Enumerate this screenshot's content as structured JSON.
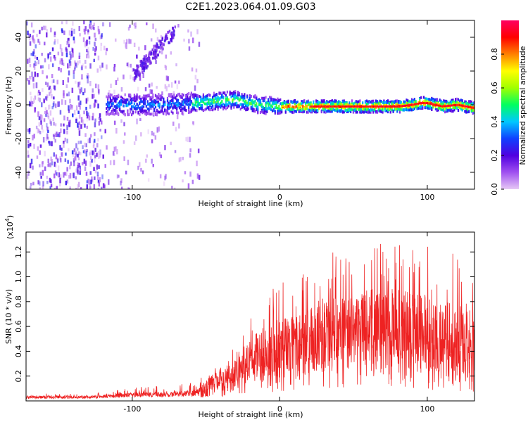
{
  "chart_data": [
    {
      "type": "heatmap",
      "title": "C2E1.2023.064.01.09.G03",
      "xlabel": "Height of straight line (km)",
      "ylabel": "Frequency (Hz)",
      "xlim": [
        -172,
        132
      ],
      "ylim": [
        -50,
        50
      ],
      "xticks": [
        -100,
        0,
        100
      ],
      "yticks": [
        -40,
        -20,
        0,
        20,
        40
      ],
      "colorbar": {
        "label": "Normalized spectral amplitude",
        "range": [
          0.0,
          1.0
        ],
        "ticks": [
          "0.0",
          "0.2",
          "0.4",
          "0.6",
          "0.8"
        ],
        "colors": [
          "#e6c8f5",
          "#a050f0",
          "#5000e0",
          "#1040ff",
          "#00c8ff",
          "#00ff60",
          "#a0ff00",
          "#ffff00",
          "#ff8000",
          "#ff0000",
          "#ff0060"
        ]
      },
      "ridge": {
        "description_values": "peak frequency (Hz) vs height (km)",
        "x": [
          -118,
          -100,
          -80,
          -60,
          -45,
          -30,
          -15,
          0,
          20,
          40,
          60,
          80,
          90,
          95,
          100,
          110,
          120,
          132
        ],
        "freq": [
          0,
          0,
          0,
          1,
          2,
          3,
          0,
          -1,
          -1,
          -1,
          -1,
          -1,
          0,
          1,
          1,
          -1,
          0,
          -2
        ]
      },
      "noise_region": {
        "x_from": -172,
        "x_to": -55,
        "upper_feature_x": [
          -100,
          -70
        ],
        "upper_feature_freq": [
          20,
          45
        ]
      }
    },
    {
      "type": "line",
      "xlabel": "Height of straight line (km)",
      "ylabel": "SNR (10 * v/v)",
      "multiplier_label": "(x10",
      "multiplier_exp": "4",
      "multiplier_close": ")",
      "xlim": [
        -172,
        132
      ],
      "ylim": [
        0,
        1.36
      ],
      "xticks": [
        -100,
        0,
        100
      ],
      "yticks": [
        0.2,
        0.4,
        0.6,
        0.8,
        1.0,
        1.2
      ],
      "ytick_labels": [
        "0.2",
        "0.4",
        "0.6",
        "0.8",
        "1.0",
        "1.2"
      ],
      "color": "#ee2222",
      "envelope": {
        "x": [
          -172,
          -130,
          -115,
          -100,
          -80,
          -60,
          -50,
          -40,
          -30,
          -20,
          -10,
          0,
          10,
          20,
          30,
          40,
          50,
          60,
          70,
          80,
          90,
          100,
          110,
          120,
          132
        ],
        "base": [
          0.03,
          0.03,
          0.04,
          0.05,
          0.05,
          0.06,
          0.1,
          0.15,
          0.22,
          0.28,
          0.32,
          0.36,
          0.38,
          0.4,
          0.44,
          0.48,
          0.5,
          0.52,
          0.52,
          0.5,
          0.48,
          0.45,
          0.4,
          0.38,
          0.36
        ],
        "peak": [
          0.05,
          0.05,
          0.08,
          0.12,
          0.12,
          0.14,
          0.24,
          0.4,
          0.52,
          0.75,
          0.9,
          0.98,
          1.0,
          1.12,
          1.18,
          1.22,
          1.25,
          1.3,
          1.28,
          1.3,
          1.36,
          1.3,
          1.28,
          1.22,
          1.0
        ]
      }
    }
  ]
}
